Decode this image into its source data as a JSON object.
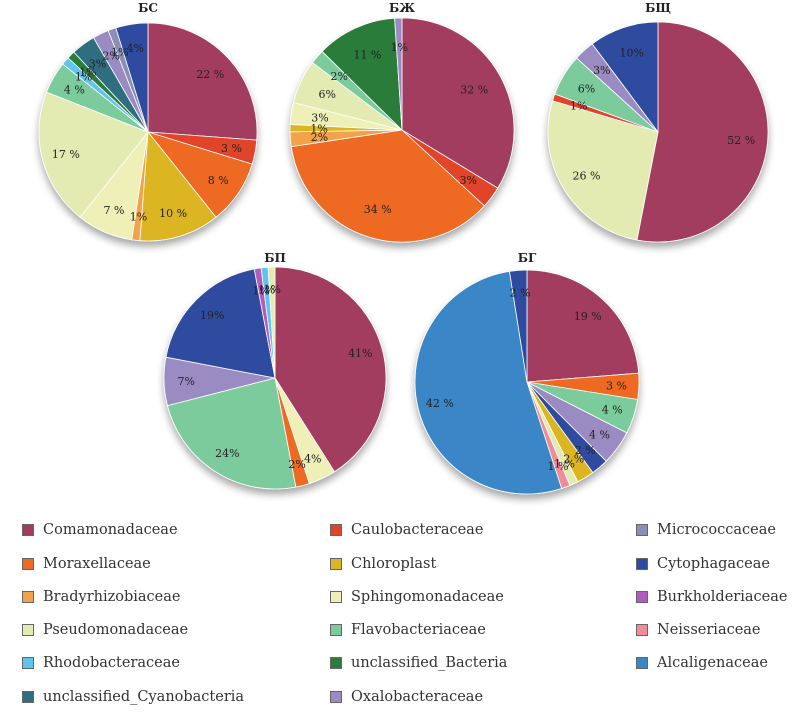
{
  "families": [
    {
      "name": "Comamonadaceae",
      "color": "#A23C5E"
    },
    {
      "name": "Moraxellaceae",
      "color": "#EE6A24"
    },
    {
      "name": "Bradyrhizobiaceae",
      "color": "#F2A24A"
    },
    {
      "name": "Pseudomonadaceae",
      "color": "#E3EAB2"
    },
    {
      "name": "Rhodobacteraceae",
      "color": "#5FC4F0"
    },
    {
      "name": "unclassified_Cyanobacteria",
      "color": "#2E6E80"
    },
    {
      "name": "Caulobacteraceae",
      "color": "#E0452B"
    },
    {
      "name": "Chloroplast",
      "color": "#DBB622"
    },
    {
      "name": "Sphingomonadaceae",
      "color": "#EEF0B8"
    },
    {
      "name": "Flavobacteriaceae",
      "color": "#7CCB9C"
    },
    {
      "name": "unclassified_Bacteria",
      "color": "#2C7C3A"
    },
    {
      "name": "Oxalobacteraceae",
      "color": "#9A8CC2"
    },
    {
      "name": "Micrococcaceae",
      "color": "#8A8FB8"
    },
    {
      "name": "Cytophagaceae",
      "color": "#2F4BA0"
    },
    {
      "name": "Burkholderiaceae",
      "color": "#B25BBE"
    },
    {
      "name": "Neisseriaceae",
      "color": "#F08C96"
    },
    {
      "name": "Alcaligenaceae",
      "color": "#3A86C6"
    }
  ],
  "chart_data": [
    {
      "type": "pie",
      "title": "БС",
      "slices": [
        {
          "family": "Comamonadaceae",
          "value": 22,
          "label": "22 %"
        },
        {
          "family": "Caulobacteraceae",
          "value": 3,
          "label": "3 %"
        },
        {
          "family": "Moraxellaceae",
          "value": 8,
          "label": "8 %"
        },
        {
          "family": "Chloroplast",
          "value": 10,
          "label": "10 %"
        },
        {
          "family": "Bradyrhizobiaceae",
          "value": 1,
          "label": "1%"
        },
        {
          "family": "Sphingomonadaceae",
          "value": 7,
          "label": "7 %"
        },
        {
          "family": "Pseudomonadaceae",
          "value": 17,
          "label": "17 %"
        },
        {
          "family": "Flavobacteriaceae",
          "value": 4,
          "label": "4 %"
        },
        {
          "family": "Rhodobacteraceae",
          "value": 1,
          "label": "1%"
        },
        {
          "family": "unclassified_Bacteria",
          "value": 1,
          "label": "1%"
        },
        {
          "family": "unclassified_Cyanobacteria",
          "value": 3,
          "label": "3%"
        },
        {
          "family": "Oxalobacteraceae",
          "value": 2,
          "label": "2%"
        },
        {
          "family": "Micrococcaceae",
          "value": 1,
          "label": "1%"
        },
        {
          "family": "Cytophagaceae",
          "value": 4,
          "label": "4%"
        }
      ]
    },
    {
      "type": "pie",
      "title": "БЖ",
      "slices": [
        {
          "family": "Comamonadaceae",
          "value": 32,
          "label": "32 %"
        },
        {
          "family": "Caulobacteraceae",
          "value": 3,
          "label": "3%"
        },
        {
          "family": "Moraxellaceae",
          "value": 34,
          "label": "34 %"
        },
        {
          "family": "Bradyrhizobiaceae",
          "value": 2,
          "label": "2%"
        },
        {
          "family": "Chloroplast",
          "value": 1,
          "label": "1%"
        },
        {
          "family": "Sphingomonadaceae",
          "value": 3,
          "label": "3%"
        },
        {
          "family": "Pseudomonadaceae",
          "value": 6,
          "label": "6%"
        },
        {
          "family": "Flavobacteriaceae",
          "value": 2,
          "label": "2%"
        },
        {
          "family": "unclassified_Bacteria",
          "value": 11,
          "label": "11 %"
        },
        {
          "family": "Oxalobacteraceae",
          "value": 1,
          "label": "1%"
        }
      ]
    },
    {
      "type": "pie",
      "title": "БЩ",
      "slices": [
        {
          "family": "Comamonadaceae",
          "value": 52,
          "label": "52 %"
        },
        {
          "family": "Pseudomonadaceae",
          "value": 26,
          "label": "26 %"
        },
        {
          "family": "Caulobacteraceae",
          "value": 1,
          "label": "1%"
        },
        {
          "family": "Flavobacteriaceae",
          "value": 6,
          "label": "6%"
        },
        {
          "family": "Oxalobacteraceae",
          "value": 3,
          "label": "3%"
        },
        {
          "family": "Cytophagaceae",
          "value": 10,
          "label": "10%"
        }
      ]
    },
    {
      "type": "pie",
      "title": "БП",
      "slices": [
        {
          "family": "Comamonadaceae",
          "value": 41,
          "label": "41%"
        },
        {
          "family": "Sphingomonadaceae",
          "value": 4,
          "label": "4%"
        },
        {
          "family": "Moraxellaceae",
          "value": 2,
          "label": "2%"
        },
        {
          "family": "Flavobacteriaceae",
          "value": 24,
          "label": "24%"
        },
        {
          "family": "Oxalobacteraceae",
          "value": 7,
          "label": "7%"
        },
        {
          "family": "Cytophagaceae",
          "value": 19,
          "label": "19%"
        },
        {
          "family": "Burkholderiaceae",
          "value": 1,
          "label": "1%"
        },
        {
          "family": "Rhodobacteraceae",
          "value": 1,
          "label": "1%"
        },
        {
          "family": "Pseudomonadaceae",
          "value": 1,
          "label": "1%"
        }
      ]
    },
    {
      "type": "pie",
      "title": "БГ",
      "slices": [
        {
          "family": "Comamonadaceae",
          "value": 19,
          "label": "19 %"
        },
        {
          "family": "Moraxellaceae",
          "value": 3,
          "label": "3 %"
        },
        {
          "family": "Flavobacteriaceae",
          "value": 4,
          "label": "4 %"
        },
        {
          "family": "Oxalobacteraceae",
          "value": 4,
          "label": "4 %"
        },
        {
          "family": "Cytophagaceae",
          "value": 2,
          "label": "2 %"
        },
        {
          "family": "Chloroplast",
          "value": 2,
          "label": "2 %"
        },
        {
          "family": "Pseudomonadaceae",
          "value": 1,
          "label": "1 %"
        },
        {
          "family": "Neisseriaceae",
          "value": 1,
          "label": "1 %"
        },
        {
          "family": "Alcaligenaceae",
          "value": 42,
          "label": "42 %"
        },
        {
          "family": "Cytophagaceae",
          "value": 2,
          "label": "2 %"
        }
      ]
    }
  ]
}
